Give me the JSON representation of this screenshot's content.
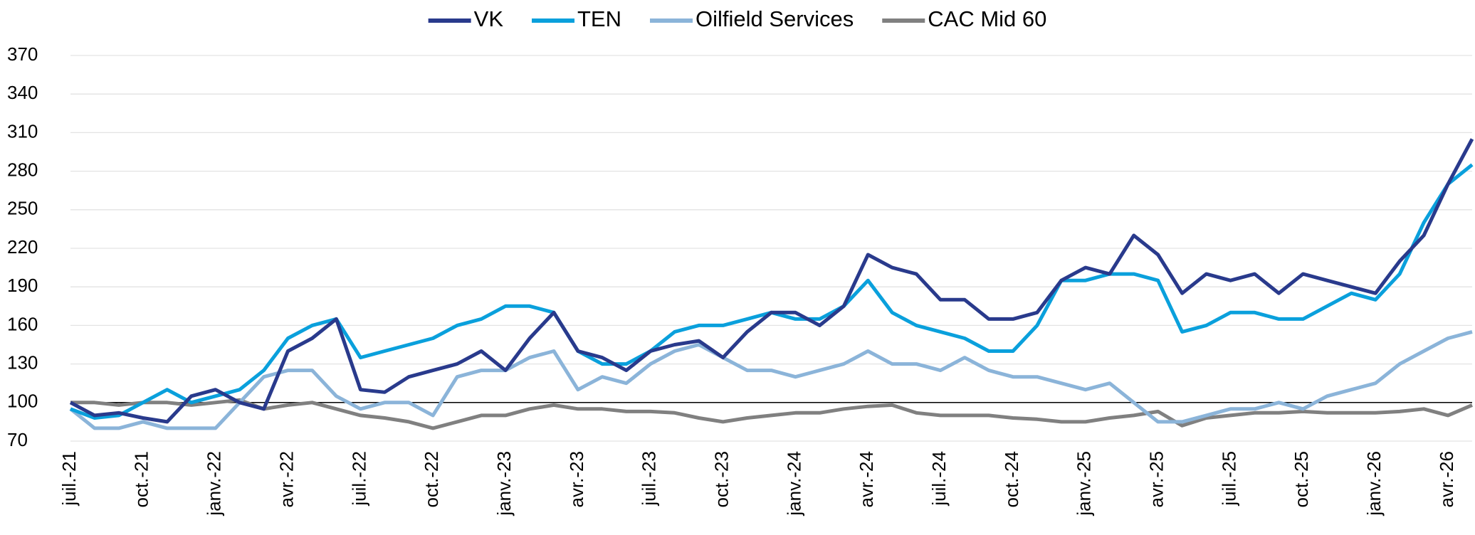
{
  "chart_data": {
    "type": "line",
    "categories": [
      "juil.-21",
      null,
      null,
      "oct.-21",
      null,
      null,
      "janv.-22",
      null,
      null,
      "avr.-22",
      null,
      null,
      "juil.-22",
      null,
      null,
      "oct.-22",
      null,
      null,
      "janv.-23",
      null,
      null,
      "avr.-23",
      null,
      null,
      "juil.-23",
      null,
      null,
      "oct.-23",
      null,
      null,
      "janv.-24",
      null,
      null,
      "avr.-24",
      null,
      null,
      "juil.-24",
      null,
      null,
      "oct.-24",
      null,
      null,
      "janv.-25",
      null,
      null,
      "avr.-25",
      null,
      null,
      "juil.-25",
      null,
      null,
      "oct.-25",
      null,
      null,
      "janv.-26",
      null,
      null,
      "avr.-26",
      null
    ],
    "series": [
      {
        "name": "VK",
        "color": "#293a8c",
        "values": [
          100,
          90,
          92,
          88,
          85,
          105,
          110,
          100,
          95,
          140,
          150,
          165,
          110,
          108,
          120,
          125,
          130,
          140,
          125,
          150,
          170,
          140,
          135,
          125,
          140,
          145,
          148,
          135,
          155,
          170,
          170,
          160,
          175,
          215,
          205,
          200,
          180,
          180,
          165,
          165,
          170,
          195,
          205,
          200,
          230,
          215,
          185,
          200,
          195,
          200,
          185,
          200,
          195,
          190,
          185,
          210,
          230,
          270,
          305
        ]
      },
      {
        "name": "TEN",
        "color": "#0aa0dc",
        "values": [
          95,
          88,
          90,
          100,
          110,
          100,
          105,
          110,
          125,
          150,
          160,
          165,
          135,
          140,
          145,
          150,
          160,
          165,
          175,
          175,
          170,
          140,
          130,
          130,
          140,
          155,
          160,
          160,
          165,
          170,
          165,
          165,
          175,
          195,
          170,
          160,
          155,
          150,
          140,
          140,
          160,
          195,
          195,
          200,
          200,
          195,
          155,
          160,
          170,
          170,
          165,
          165,
          175,
          185,
          180,
          200,
          240,
          270,
          285
        ]
      },
      {
        "name": "Oilfield Services",
        "color": "#8bb4d9",
        "values": [
          95,
          80,
          80,
          85,
          80,
          80,
          80,
          100,
          120,
          125,
          125,
          105,
          95,
          100,
          100,
          90,
          120,
          125,
          125,
          135,
          140,
          110,
          120,
          115,
          130,
          140,
          145,
          135,
          125,
          125,
          120,
          125,
          130,
          140,
          130,
          130,
          125,
          135,
          125,
          120,
          120,
          115,
          110,
          115,
          100,
          85,
          85,
          90,
          95,
          95,
          100,
          95,
          105,
          110,
          115,
          130,
          140,
          150,
          155
        ]
      },
      {
        "name": "CAC Mid 60",
        "color": "#808080",
        "values": [
          100,
          100,
          98,
          100,
          100,
          98,
          100,
          102,
          95,
          98,
          100,
          95,
          90,
          88,
          85,
          80,
          85,
          90,
          90,
          95,
          98,
          95,
          95,
          93,
          93,
          92,
          88,
          85,
          88,
          90,
          92,
          92,
          95,
          97,
          98,
          92,
          90,
          90,
          90,
          88,
          87,
          85,
          85,
          88,
          90,
          93,
          82,
          88,
          90,
          92,
          92,
          93,
          92,
          92,
          92,
          93,
          95,
          90,
          98
        ]
      }
    ],
    "ylim": [
      70,
      370
    ],
    "yticks": [
      70,
      100,
      130,
      160,
      190,
      220,
      250,
      280,
      310,
      340,
      370
    ],
    "grid": true,
    "reference_line": 100,
    "legend": "top"
  }
}
